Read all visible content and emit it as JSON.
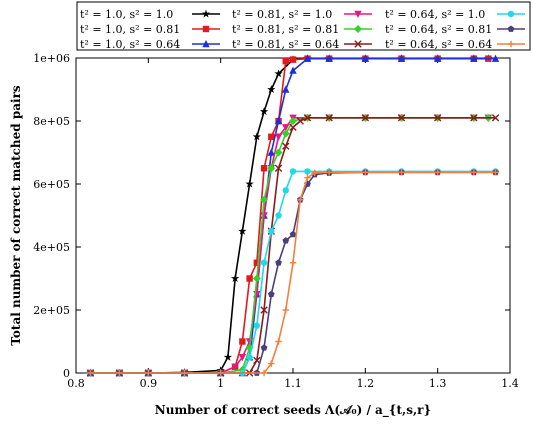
{
  "chart_data": {
    "type": "line",
    "xlabel": "Number of correct seeds Λ(𝒜₀) / a_{t,s,r}",
    "ylabel": "Total number of correct matched pairs",
    "xlim": [
      0.8,
      1.4
    ],
    "ylim": [
      0,
      1000000
    ],
    "x_ticks": [
      "0.8",
      "0.9",
      "1",
      "1.1",
      "1.2",
      "1.3",
      "1.4"
    ],
    "y_ticks": [
      "0",
      "2e+05",
      "4e+05",
      "6e+05",
      "8e+05",
      "1e+06"
    ],
    "grid": false,
    "legend_position": "top",
    "series": [
      {
        "name": "t² = 1.0, s² = 1.0",
        "color": "#000000",
        "marker": "star",
        "x": [
          0.82,
          0.86,
          0.9,
          0.95,
          1.0,
          1.01,
          1.02,
          1.03,
          1.04,
          1.05,
          1.06,
          1.07,
          1.08,
          1.1,
          1.12,
          1.15,
          1.2,
          1.25,
          1.3,
          1.35,
          1.37
        ],
        "y": [
          0,
          0,
          0,
          2000,
          8000,
          50000,
          300000,
          450000,
          600000,
          750000,
          830000,
          900000,
          950000,
          995000,
          998000,
          998000,
          998000,
          998000,
          998000,
          998000,
          998000
        ]
      },
      {
        "name": "t² = 1.0, s² = 0.81",
        "color": "#e31a1c",
        "marker": "square",
        "x": [
          0.82,
          0.86,
          0.9,
          0.95,
          1.0,
          1.02,
          1.03,
          1.04,
          1.05,
          1.06,
          1.07,
          1.08,
          1.09,
          1.1,
          1.12,
          1.15,
          1.2,
          1.25,
          1.3,
          1.35,
          1.37
        ],
        "y": [
          0,
          0,
          0,
          0,
          0,
          20000,
          100000,
          300000,
          350000,
          650000,
          750000,
          800000,
          990000,
          995000,
          998000,
          998000,
          998000,
          998000,
          998000,
          998000,
          998000
        ]
      },
      {
        "name": "t² = 1.0, s² = 0.64",
        "color": "#1f2ed6",
        "marker": "triangle",
        "x": [
          0.82,
          0.86,
          0.9,
          0.95,
          1.0,
          1.03,
          1.04,
          1.05,
          1.06,
          1.07,
          1.08,
          1.09,
          1.1,
          1.12,
          1.15,
          1.2,
          1.25,
          1.3,
          1.35,
          1.38
        ],
        "y": [
          0,
          0,
          0,
          0,
          0,
          0,
          50000,
          250000,
          500000,
          700000,
          800000,
          900000,
          960000,
          998000,
          998000,
          998000,
          998000,
          998000,
          998000,
          998000
        ]
      },
      {
        "name": "t² = 0.81, s² = 1.0",
        "color": "#e8177f",
        "marker": "triangle-down",
        "x": [
          0.82,
          0.86,
          0.9,
          0.95,
          1.0,
          1.02,
          1.03,
          1.04,
          1.05,
          1.06,
          1.07,
          1.08,
          1.09,
          1.1,
          1.12,
          1.15,
          1.2,
          1.25,
          1.3,
          1.35,
          1.37
        ],
        "y": [
          0,
          0,
          0,
          0,
          0,
          20000,
          50000,
          100000,
          250000,
          500000,
          650000,
          750000,
          780000,
          810000,
          810000,
          810000,
          810000,
          810000,
          810000,
          810000,
          810000
        ]
      },
      {
        "name": "t² = 0.81, s² = 0.81",
        "color": "#32d42b",
        "marker": "diamond",
        "x": [
          0.82,
          0.86,
          0.9,
          0.95,
          1.0,
          1.03,
          1.04,
          1.05,
          1.06,
          1.07,
          1.08,
          1.09,
          1.1,
          1.12,
          1.15,
          1.2,
          1.25,
          1.3,
          1.35,
          1.37
        ],
        "y": [
          0,
          0,
          0,
          0,
          0,
          10000,
          80000,
          300000,
          550000,
          650000,
          700000,
          760000,
          800000,
          810000,
          810000,
          810000,
          810000,
          810000,
          810000,
          810000
        ]
      },
      {
        "name": "t² = 0.81, s² = 0.64",
        "color": "#8b1a1a",
        "marker": "x",
        "x": [
          0.82,
          0.86,
          0.9,
          0.95,
          1.0,
          1.04,
          1.05,
          1.06,
          1.07,
          1.08,
          1.09,
          1.1,
          1.11,
          1.12,
          1.15,
          1.2,
          1.25,
          1.3,
          1.35,
          1.38
        ],
        "y": [
          0,
          0,
          0,
          0,
          0,
          0,
          40000,
          200000,
          450000,
          650000,
          720000,
          780000,
          800000,
          810000,
          810000,
          810000,
          810000,
          810000,
          810000,
          810000
        ]
      },
      {
        "name": "t² = 0.64, s² = 1.0",
        "color": "#22d8e8",
        "marker": "circle",
        "x": [
          0.82,
          0.86,
          0.9,
          0.95,
          1.0,
          1.03,
          1.04,
          1.05,
          1.06,
          1.07,
          1.08,
          1.09,
          1.1,
          1.12,
          1.15,
          1.2,
          1.25,
          1.3,
          1.35,
          1.38
        ],
        "y": [
          0,
          0,
          0,
          0,
          0,
          0,
          50000,
          150000,
          350000,
          450000,
          500000,
          580000,
          640000,
          640000,
          640000,
          640000,
          640000,
          640000,
          640000,
          640000
        ]
      },
      {
        "name": "t² = 0.64, s² = 0.81",
        "color": "#4b3e7e",
        "marker": "pentagon",
        "x": [
          0.82,
          0.86,
          0.9,
          0.95,
          1.0,
          1.05,
          1.06,
          1.07,
          1.08,
          1.09,
          1.1,
          1.11,
          1.12,
          1.13,
          1.15,
          1.2,
          1.25,
          1.3,
          1.35,
          1.38
        ],
        "y": [
          0,
          0,
          0,
          0,
          0,
          0,
          80000,
          250000,
          350000,
          420000,
          440000,
          550000,
          600000,
          630000,
          635000,
          637000,
          637000,
          637000,
          637000,
          637000
        ]
      },
      {
        "name": "t² = 0.64, s² = 0.64",
        "color": "#f4813b",
        "marker": "plus",
        "x": [
          0.82,
          0.86,
          0.9,
          0.95,
          1.0,
          1.06,
          1.07,
          1.08,
          1.09,
          1.1,
          1.11,
          1.12,
          1.13,
          1.15,
          1.2,
          1.25,
          1.3,
          1.35,
          1.38
        ],
        "y": [
          0,
          0,
          0,
          0,
          0,
          0,
          30000,
          100000,
          200000,
          350000,
          550000,
          620000,
          635000,
          637000,
          637000,
          637000,
          637000,
          637000,
          637000
        ]
      }
    ]
  }
}
